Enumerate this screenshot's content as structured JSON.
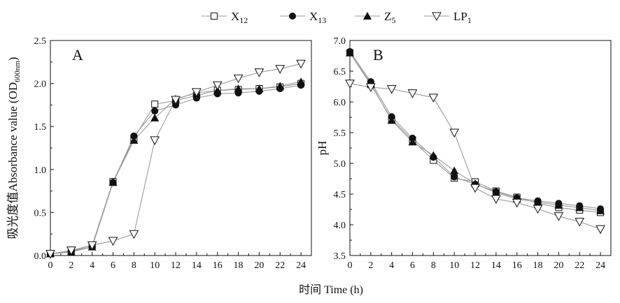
{
  "legend": {
    "position": "top-center",
    "items": [
      {
        "label": "X",
        "sub": "12",
        "marker": "square-open"
      },
      {
        "label": "X",
        "sub": "13",
        "marker": "circle-filled"
      },
      {
        "label": "Z",
        "sub": "5",
        "marker": "triangle-up-filled"
      },
      {
        "label": "LP",
        "sub": "1",
        "marker": "triangle-down-open"
      }
    ]
  },
  "shared_xlabel": "时间 Time (h)",
  "colors": {
    "line": "#9a9a9a",
    "marker": "#111111",
    "axis": "#111111"
  },
  "chart_data": [
    {
      "type": "line",
      "panel_label": "A",
      "ylabel_main": "吸光度值Absorbance value (OD",
      "ylabel_sub": "600nm",
      "ylabel_close": ")",
      "xlabel": "",
      "x": [
        0,
        2,
        4,
        6,
        8,
        10,
        12,
        14,
        16,
        18,
        20,
        22,
        24
      ],
      "xlim": [
        0,
        25
      ],
      "ylim": [
        0,
        2.5
      ],
      "xticks": [
        "0",
        "2",
        "4",
        "6",
        "8",
        "10",
        "12",
        "14",
        "16",
        "18",
        "20",
        "22",
        "24"
      ],
      "yticks": [
        "0.0",
        "0.5",
        "1.0",
        "1.5",
        "2.0",
        "2.5"
      ],
      "ytick_values": [
        0,
        0.5,
        1.0,
        1.5,
        2.0,
        2.5
      ],
      "grid": false,
      "series": [
        {
          "name": "X12",
          "values": [
            0.02,
            0.05,
            0.12,
            0.86,
            1.36,
            1.76,
            1.8,
            1.86,
            1.92,
            1.93,
            1.94,
            1.96,
            2.0
          ]
        },
        {
          "name": "X13",
          "values": [
            0.02,
            0.05,
            0.1,
            0.85,
            1.39,
            1.68,
            1.75,
            1.83,
            1.88,
            1.89,
            1.91,
            1.94,
            1.98
          ]
        },
        {
          "name": "Z5",
          "values": [
            0.02,
            0.04,
            0.1,
            0.85,
            1.34,
            1.6,
            1.82,
            1.89,
            1.92,
            1.94,
            1.94,
            1.97,
            2.02
          ]
        },
        {
          "name": "LP1",
          "values": [
            0.02,
            0.06,
            0.12,
            0.17,
            0.25,
            1.34,
            1.81,
            1.9,
            1.98,
            2.06,
            2.13,
            2.17,
            2.23
          ]
        }
      ]
    },
    {
      "type": "line",
      "panel_label": "B",
      "ylabel_main": "pH",
      "ylabel_sub": "",
      "ylabel_close": "",
      "xlabel": "",
      "x": [
        0,
        2,
        4,
        6,
        8,
        10,
        12,
        14,
        16,
        18,
        20,
        22,
        24
      ],
      "xlim": [
        0,
        25
      ],
      "ylim": [
        3.5,
        7.0
      ],
      "xticks": [
        "0",
        "2",
        "4",
        "6",
        "8",
        "10",
        "12",
        "14",
        "16",
        "18",
        "20",
        "22",
        "24"
      ],
      "yticks": [
        "3.5",
        "4.0",
        "4.5",
        "5.0",
        "5.5",
        "6.0",
        "6.5",
        "7.0"
      ],
      "ytick_values": [
        3.5,
        4.0,
        4.5,
        5.0,
        5.5,
        6.0,
        6.5,
        7.0
      ],
      "grid": false,
      "series": [
        {
          "name": "X12",
          "values": [
            6.8,
            6.28,
            5.72,
            5.38,
            5.05,
            4.76,
            4.7,
            4.55,
            4.45,
            4.35,
            4.28,
            4.24,
            4.2
          ]
        },
        {
          "name": "X13",
          "values": [
            6.82,
            6.33,
            5.76,
            5.41,
            5.1,
            4.78,
            4.66,
            4.54,
            4.44,
            4.39,
            4.35,
            4.31,
            4.26
          ]
        },
        {
          "name": "Z5",
          "values": [
            6.8,
            6.3,
            5.7,
            5.35,
            5.13,
            4.88,
            4.67,
            4.52,
            4.42,
            4.37,
            4.32,
            4.28,
            4.23
          ]
        },
        {
          "name": "LP1",
          "values": [
            6.3,
            6.24,
            6.21,
            6.14,
            6.07,
            5.5,
            4.6,
            4.42,
            4.36,
            4.26,
            4.14,
            4.05,
            3.93
          ]
        }
      ]
    }
  ]
}
